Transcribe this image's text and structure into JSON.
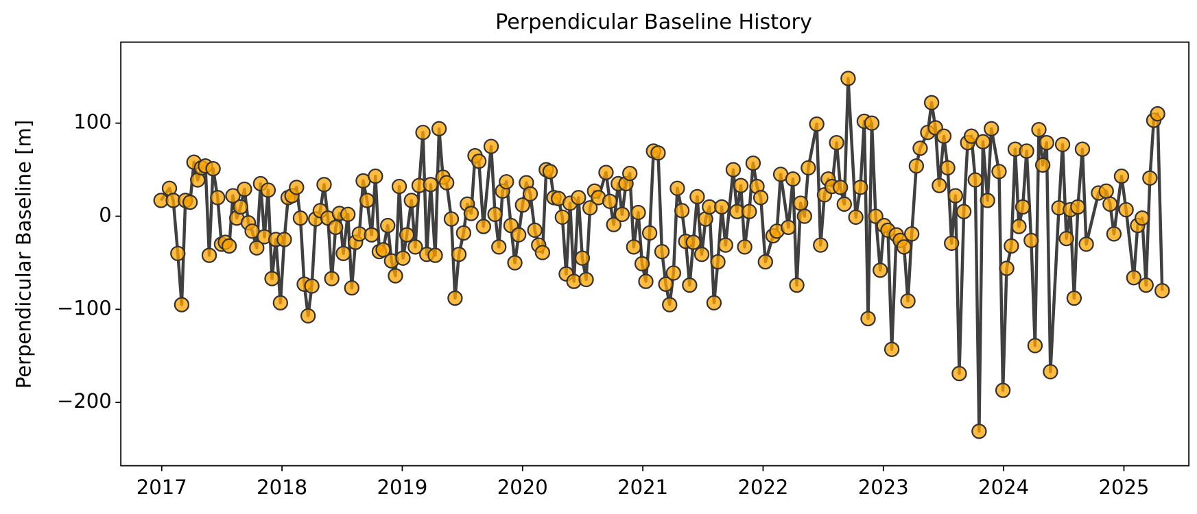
{
  "chart_data": {
    "type": "line",
    "title": "Perpendicular Baseline History",
    "ylabel": "Perpendicular Baseline [m]",
    "line_color": "#404040",
    "marker_color": "#ffa500",
    "marker_edge": "#333333",
    "xlim": [
      2016.66,
      2025.54
    ],
    "xticks": [
      2017,
      2018,
      2019,
      2020,
      2021,
      2022,
      2023,
      2024,
      2025
    ],
    "ylim": [
      -268,
      187
    ],
    "yticks": [
      {
        "value": -200,
        "label": "−200"
      },
      {
        "value": -100,
        "label": "−100"
      },
      0,
      100
    ],
    "x": [
      2016.994,
      2017.064,
      2017.096,
      2017.134,
      2017.166,
      2017.197,
      2017.236,
      2017.268,
      2017.299,
      2017.331,
      2017.363,
      2017.395,
      2017.427,
      2017.465,
      2017.497,
      2017.529,
      2017.561,
      2017.592,
      2017.624,
      2017.656,
      2017.688,
      2017.72,
      2017.752,
      2017.79,
      2017.822,
      2017.854,
      2017.885,
      2017.917,
      2017.949,
      2017.987,
      2018.019,
      2018.051,
      2018.083,
      2018.121,
      2018.153,
      2018.185,
      2018.217,
      2018.248,
      2018.28,
      2018.318,
      2018.35,
      2018.382,
      2018.414,
      2018.446,
      2018.478,
      2018.51,
      2018.548,
      2018.58,
      2018.611,
      2018.643,
      2018.675,
      2018.707,
      2018.745,
      2018.777,
      2018.809,
      2018.841,
      2018.879,
      2018.911,
      2018.943,
      2018.975,
      2019.006,
      2019.038,
      2019.076,
      2019.108,
      2019.14,
      2019.172,
      2019.204,
      2019.236,
      2019.274,
      2019.306,
      2019.338,
      2019.369,
      2019.408,
      2019.439,
      2019.471,
      2019.51,
      2019.541,
      2019.573,
      2019.605,
      2019.637,
      2019.675,
      2019.739,
      2019.771,
      2019.803,
      2019.834,
      2019.866,
      2019.904,
      2019.936,
      2019.968,
      2020.0,
      2020.032,
      2020.064,
      2020.102,
      2020.134,
      2020.166,
      2020.197,
      2020.229,
      2020.261,
      2020.299,
      2020.331,
      2020.363,
      2020.395,
      2020.427,
      2020.465,
      2020.497,
      2020.529,
      2020.561,
      2020.599,
      2020.631,
      2020.694,
      2020.726,
      2020.758,
      2020.796,
      2020.828,
      2020.86,
      2020.892,
      2020.924,
      2020.962,
      2020.994,
      2021.025,
      2021.057,
      2021.089,
      2021.127,
      2021.159,
      2021.191,
      2021.223,
      2021.255,
      2021.287,
      2021.325,
      2021.357,
      2021.389,
      2021.42,
      2021.452,
      2021.49,
      2021.522,
      2021.554,
      2021.592,
      2021.624,
      2021.656,
      2021.688,
      2021.752,
      2021.783,
      2021.815,
      2021.847,
      2021.885,
      2021.917,
      2021.949,
      2021.981,
      2022.019,
      2022.083,
      2022.115,
      2022.146,
      2022.21,
      2022.248,
      2022.28,
      2022.312,
      2022.344,
      2022.376,
      2022.446,
      2022.478,
      2022.51,
      2022.541,
      2022.573,
      2022.611,
      2022.643,
      2022.675,
      2022.707,
      2022.771,
      2022.809,
      2022.841,
      2022.873,
      2022.904,
      2022.936,
      2022.974,
      2023.006,
      2023.038,
      2023.07,
      2023.108,
      2023.14,
      2023.172,
      2023.204,
      2023.236,
      2023.274,
      2023.306,
      2023.369,
      2023.401,
      2023.433,
      2023.465,
      2023.503,
      2023.535,
      2023.567,
      2023.599,
      2023.631,
      2023.669,
      2023.701,
      2023.732,
      2023.764,
      2023.796,
      2023.828,
      2023.866,
      2023.898,
      2023.962,
      2023.994,
      2024.025,
      2024.064,
      2024.096,
      2024.127,
      2024.159,
      2024.191,
      2024.229,
      2024.261,
      2024.293,
      2024.325,
      2024.357,
      2024.389,
      2024.459,
      2024.49,
      2024.522,
      2024.554,
      2024.586,
      2024.617,
      2024.655,
      2024.687,
      2024.789,
      2024.853,
      2024.885,
      2024.917,
      2024.98,
      2025.018,
      2025.082,
      2025.114,
      2025.152,
      2025.184,
      2025.216,
      2025.248,
      2025.28,
      2025.318
    ],
    "values": [
      17,
      30,
      17,
      -40,
      -95,
      17,
      15,
      58,
      39,
      52,
      54,
      -42,
      51,
      20,
      -30,
      -28,
      -32,
      22,
      -2,
      10,
      29,
      -7,
      -16,
      -34,
      35,
      -22,
      28,
      -67,
      -25,
      -93,
      -25,
      20,
      22,
      31,
      -2,
      -73,
      -107,
      -75,
      -3,
      6,
      34,
      -2,
      -67,
      -12,
      3,
      -40,
      2,
      -77,
      -28,
      -19,
      38,
      17,
      -20,
      43,
      -38,
      -36,
      -10,
      -48,
      -64,
      32,
      -45,
      -20,
      17,
      -33,
      33,
      90,
      -41,
      34,
      -42,
      94,
      42,
      36,
      -3,
      -88,
      -41,
      -18,
      13,
      3,
      65,
      59,
      -11,
      75,
      2,
      -33,
      27,
      37,
      -10,
      -50,
      -20,
      12,
      36,
      24,
      -15,
      -31,
      -39,
      50,
      48,
      20,
      19,
      -1,
      -62,
      14,
      -70,
      20,
      -45,
      -68,
      9,
      27,
      20,
      47,
      16,
      -9,
      35,
      2,
      35,
      46,
      -33,
      4,
      -51,
      -70,
      -18,
      70,
      68,
      -38,
      -73,
      -95,
      -61,
      30,
      6,
      -27,
      -74,
      -28,
      21,
      -41,
      -3,
      10,
      -93,
      -49,
      10,
      -31,
      50,
      5,
      33,
      -33,
      5,
      57,
      32,
      20,
      -49,
      -21,
      -16,
      45,
      -12,
      40,
      -74,
      14,
      0,
      52,
      99,
      -31,
      23,
      40,
      32,
      79,
      31,
      13,
      148,
      -1,
      31,
      102,
      -110,
      100,
      0,
      -58,
      -10,
      -15,
      -143,
      -20,
      -26,
      -33,
      -91,
      -19,
      54,
      73,
      90,
      122,
      95,
      33,
      86,
      52,
      -29,
      22,
      -169,
      5,
      79,
      86,
      39,
      -231,
      80,
      17,
      94,
      48,
      -187,
      -56,
      -32,
      72,
      -11,
      10,
      70,
      -26,
      -139,
      93,
      55,
      79,
      -167,
      9,
      77,
      -24,
      7,
      -88,
      10,
      72,
      -30,
      25,
      27,
      13,
      -19,
      43,
      7,
      -66,
      -10,
      -2,
      -74,
      41,
      103,
      110,
      -80
    ]
  }
}
